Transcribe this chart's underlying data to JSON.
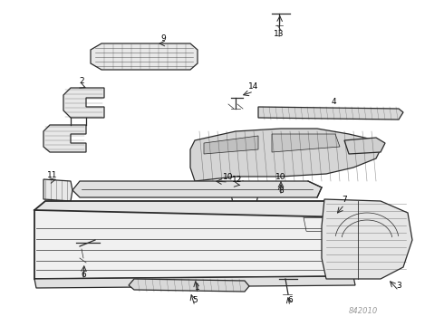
{
  "bg_color": "#ffffff",
  "line_color": "#2a2a2a",
  "label_color": "#000000",
  "fill_light": "#e8e8e8",
  "fill_mid": "#d0d0d0",
  "watermark": "842010",
  "lw_thin": 0.5,
  "lw_med": 0.9,
  "lw_thick": 1.3,
  "label_fontsize": 6.5
}
